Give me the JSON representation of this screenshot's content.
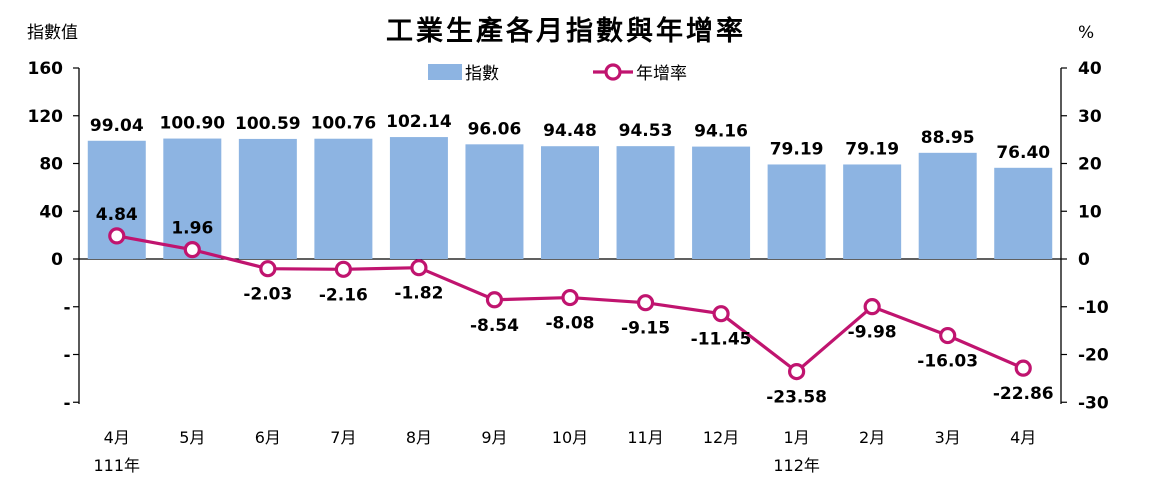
{
  "chart_data": {
    "type": "bar+line",
    "title": "工業生產各月指數與年增率",
    "ylabel_left": "指數值",
    "ylabel_right": "%",
    "categories": [
      "4月",
      "5月",
      "6月",
      "7月",
      "8月",
      "9月",
      "10月",
      "11月",
      "12月",
      "1月",
      "2月",
      "3月",
      "4月"
    ],
    "year_labels": [
      {
        "index": 0,
        "label": "111年"
      },
      {
        "index": 9,
        "label": "112年"
      }
    ],
    "left_axis": {
      "ticks": [
        "160",
        "120",
        "80",
        "40",
        "0",
        "-",
        "-",
        "-"
      ],
      "tick_values": [
        160,
        120,
        80,
        40,
        0,
        -40,
        -80,
        -120
      ],
      "ylim": [
        -150,
        160
      ]
    },
    "right_axis": {
      "ticks": [
        "40",
        "30",
        "20",
        "10",
        "0",
        "-10",
        "-20",
        "-30"
      ],
      "tick_values": [
        40,
        30,
        20,
        10,
        0,
        -10,
        -20,
        -30
      ],
      "ylim": [
        -30,
        40
      ]
    },
    "series": [
      {
        "name": "指數",
        "kind": "bar",
        "axis": "left",
        "color": "#8db4e2",
        "values": [
          99.04,
          100.9,
          100.59,
          100.76,
          102.14,
          96.06,
          94.48,
          94.53,
          94.16,
          79.19,
          79.19,
          88.95,
          76.4
        ],
        "labels": [
          "99.04",
          "100.90",
          "100.59",
          "100.76",
          "102.14",
          "96.06",
          "94.48",
          "94.53",
          "94.16",
          "79.19",
          "79.19",
          "88.95",
          "76.40"
        ]
      },
      {
        "name": "年增率",
        "kind": "line",
        "axis": "right",
        "color": "#c0146f",
        "values": [
          4.84,
          1.96,
          -2.03,
          -2.16,
          -1.82,
          -8.54,
          -8.08,
          -9.15,
          -11.45,
          -23.58,
          -9.98,
          -16.03,
          -22.86
        ],
        "labels": [
          "4.84",
          "1.96",
          "-2.03",
          "-2.16",
          "-1.82",
          "-8.54",
          "-8.08",
          "-9.15",
          "-11.45",
          "-23.58",
          "-9.98",
          "-16.03",
          "-22.86"
        ]
      }
    ],
    "legend": "top-center",
    "grid": false
  }
}
